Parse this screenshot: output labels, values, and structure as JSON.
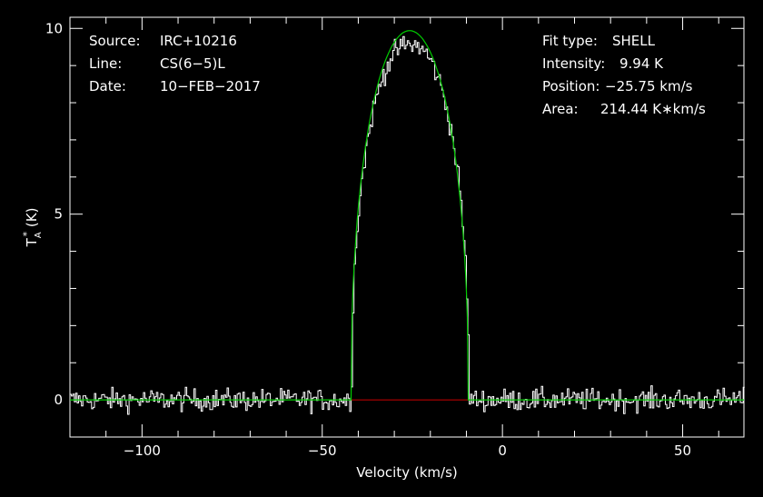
{
  "chart_data": {
    "type": "line",
    "xlabel": "Velocity (km/s)",
    "ylabel": {
      "base": "T",
      "sub": "A",
      "sup": "*",
      "unit": " (K)"
    },
    "xlim": [
      -120,
      67
    ],
    "ylim": [
      -1,
      10.3
    ],
    "x_ticks": [
      -100,
      -50,
      0,
      50
    ],
    "x_tick_labels": [
      "−100",
      "−50",
      "0",
      "50"
    ],
    "y_ticks": [
      0,
      5,
      10
    ],
    "y_tick_labels": [
      "0",
      "5",
      "10"
    ],
    "grid": false,
    "info_left": [
      {
        "key": "Source:",
        "value": "IRC+10216"
      },
      {
        "key": "Line:",
        "value": "CS(6−5)L"
      },
      {
        "key": "Date:",
        "value": "10−FEB−2017"
      }
    ],
    "info_right": [
      {
        "key": "Fit type:",
        "value": "SHELL"
      },
      {
        "key": "Intensity:",
        "value": "9.94 K"
      },
      {
        "key": "Position:",
        "value": "−25.75 km/s"
      },
      {
        "key": "Area:",
        "value": "214.44 K∗km/s"
      }
    ],
    "fit": {
      "type": "SHELL",
      "intensity": 9.94,
      "position": -25.75,
      "area": 214.44,
      "xmin": -42,
      "xmax": -9.5,
      "horn": 0.05
    },
    "series": [
      {
        "role": "spectrum",
        "color": "#ffffff",
        "noise_rms": 0.15,
        "channel_width": 0.4
      },
      {
        "role": "fit",
        "color": "#00cc00"
      },
      {
        "role": "baseline",
        "color": "#cc0000"
      }
    ],
    "colors": {
      "background": "#000000",
      "axes": "#ffffff",
      "spectrum": "#ffffff",
      "fit": "#00cc00",
      "baseline": "#cc0000"
    }
  }
}
